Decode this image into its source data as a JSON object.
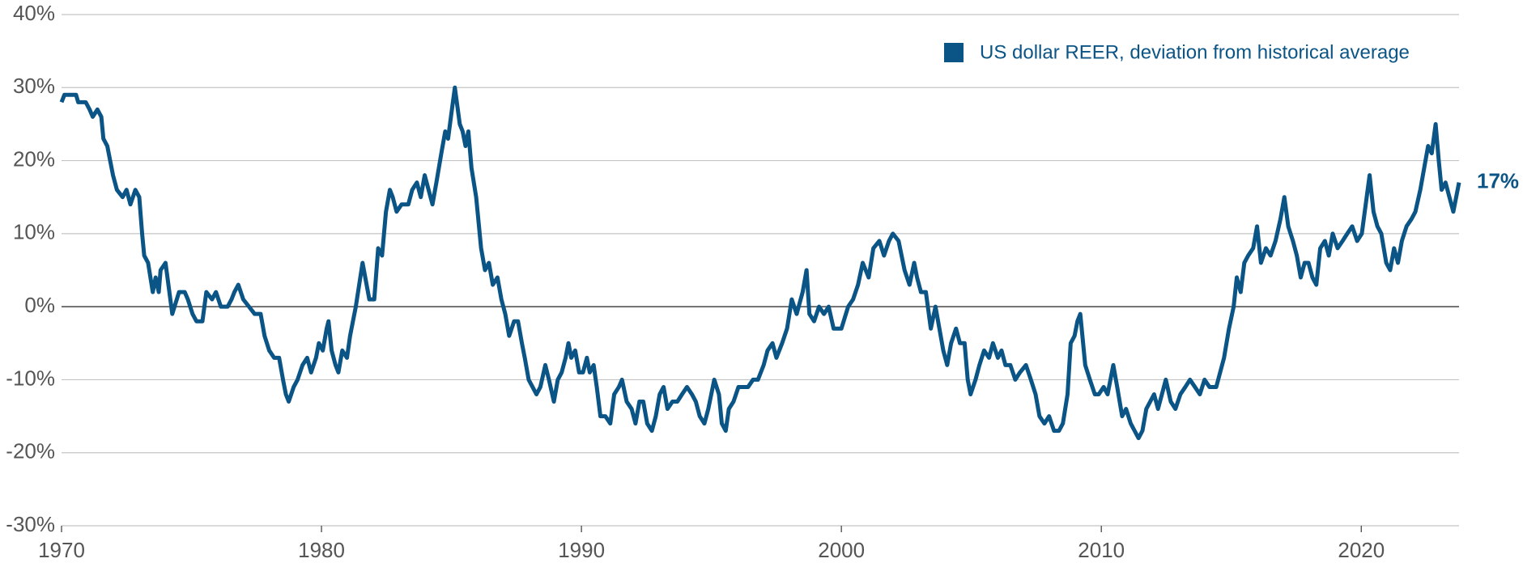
{
  "chart_data": {
    "type": "line",
    "annotation": "17%",
    "legend_position": "top-right",
    "grid": true,
    "xlim": [
      1970,
      2023.76
    ],
    "ylim": [
      -30,
      40
    ],
    "xticks": [
      1970,
      1980,
      1990,
      2000,
      2010,
      2020
    ],
    "yticks": [
      {
        "value": -30,
        "label": "-30%"
      },
      {
        "value": -20,
        "label": "-20%"
      },
      {
        "value": -10,
        "label": "-10%"
      },
      {
        "value": 0,
        "label": "0%"
      },
      {
        "value": 10,
        "label": "10%"
      },
      {
        "value": 20,
        "label": "20%"
      },
      {
        "value": 30,
        "label": "30%"
      },
      {
        "value": 40,
        "label": "40%"
      }
    ],
    "x": [
      1970.0,
      1970.11,
      1970.56,
      1970.64,
      1970.93,
      1971.08,
      1971.2,
      1971.38,
      1971.53,
      1971.61,
      1971.76,
      1971.98,
      1972.13,
      1972.35,
      1972.5,
      1972.65,
      1972.84,
      1972.99,
      1973.1,
      1973.18,
      1973.33,
      1973.51,
      1973.62,
      1973.74,
      1973.81,
      1974.0,
      1974.26,
      1974.52,
      1974.74,
      1974.86,
      1975.04,
      1975.19,
      1975.42,
      1975.57,
      1975.79,
      1975.94,
      1976.13,
      1976.39,
      1976.54,
      1976.65,
      1976.8,
      1976.99,
      1977.21,
      1977.43,
      1977.66,
      1977.81,
      1977.99,
      1978.18,
      1978.37,
      1978.52,
      1978.63,
      1978.74,
      1978.93,
      1979.08,
      1979.27,
      1979.45,
      1979.6,
      1979.79,
      1979.9,
      1980.05,
      1980.2,
      1980.27,
      1980.39,
      1980.54,
      1980.65,
      1980.8,
      1980.98,
      1981.1,
      1981.32,
      1981.58,
      1981.84,
      1982.03,
      1982.18,
      1982.33,
      1982.48,
      1982.63,
      1982.74,
      1982.89,
      1983.08,
      1983.34,
      1983.49,
      1983.67,
      1983.82,
      1983.97,
      1984.12,
      1984.27,
      1984.42,
      1984.61,
      1984.76,
      1984.87,
      1984.98,
      1985.13,
      1985.32,
      1985.43,
      1985.54,
      1985.65,
      1985.77,
      1985.95,
      1986.14,
      1986.29,
      1986.44,
      1986.59,
      1986.77,
      1986.92,
      1987.07,
      1987.22,
      1987.41,
      1987.56,
      1987.71,
      1987.82,
      1987.97,
      1988.12,
      1988.27,
      1988.42,
      1988.61,
      1988.75,
      1988.94,
      1989.09,
      1989.24,
      1989.39,
      1989.5,
      1989.61,
      1989.76,
      1989.91,
      1990.06,
      1990.21,
      1990.32,
      1990.47,
      1990.59,
      1990.73,
      1990.92,
      1991.11,
      1991.26,
      1991.44,
      1991.56,
      1991.74,
      1991.93,
      1992.08,
      1992.23,
      1992.38,
      1992.53,
      1992.71,
      1992.86,
      1993.01,
      1993.16,
      1993.31,
      1993.5,
      1993.69,
      1993.87,
      1994.06,
      1994.25,
      1994.4,
      1994.55,
      1994.73,
      1994.88,
      1995.11,
      1995.29,
      1995.4,
      1995.55,
      1995.67,
      1995.85,
      1996.04,
      1996.41,
      1996.6,
      1996.79,
      1997.01,
      1997.16,
      1997.35,
      1997.5,
      1997.72,
      1997.91,
      1998.09,
      1998.28,
      1998.51,
      1998.66,
      1998.77,
      1998.95,
      1999.14,
      1999.33,
      1999.51,
      1999.7,
      2000.0,
      2000.26,
      2000.45,
      2000.64,
      2000.82,
      2001.05,
      2001.23,
      2001.46,
      2001.64,
      2001.83,
      2001.98,
      2002.2,
      2002.43,
      2002.62,
      2002.8,
      2002.91,
      2003.06,
      2003.25,
      2003.44,
      2003.62,
      2003.77,
      2003.92,
      2004.07,
      2004.22,
      2004.41,
      2004.56,
      2004.74,
      2004.86,
      2004.97,
      2005.16,
      2005.31,
      2005.49,
      2005.68,
      2005.83,
      2006.02,
      2006.16,
      2006.31,
      2006.5,
      2006.69,
      2006.87,
      2007.1,
      2007.29,
      2007.47,
      2007.62,
      2007.81,
      2007.99,
      2008.18,
      2008.37,
      2008.52,
      2008.7,
      2008.82,
      2008.97,
      2009.08,
      2009.19,
      2009.38,
      2009.56,
      2009.75,
      2009.9,
      2010.09,
      2010.24,
      2010.35,
      2010.46,
      2010.61,
      2010.8,
      2010.95,
      2011.13,
      2011.28,
      2011.43,
      2011.58,
      2011.73,
      2011.88,
      2012.03,
      2012.18,
      2012.33,
      2012.48,
      2012.67,
      2012.85,
      2013.04,
      2013.23,
      2013.41,
      2013.6,
      2013.79,
      2013.97,
      2014.16,
      2014.42,
      2014.57,
      2014.72,
      2014.91,
      2015.09,
      2015.21,
      2015.36,
      2015.5,
      2015.65,
      2015.84,
      2015.99,
      2016.14,
      2016.33,
      2016.51,
      2016.7,
      2016.89,
      2017.04,
      2017.19,
      2017.37,
      2017.52,
      2017.67,
      2017.82,
      2017.97,
      2018.12,
      2018.27,
      2018.42,
      2018.6,
      2018.75,
      2018.9,
      2019.09,
      2019.28,
      2019.46,
      2019.65,
      2019.84,
      2020.02,
      2020.17,
      2020.32,
      2020.47,
      2020.62,
      2020.77,
      2020.96,
      2021.11,
      2021.26,
      2021.41,
      2021.56,
      2021.74,
      2021.93,
      2022.08,
      2022.27,
      2022.42,
      2022.57,
      2022.71,
      2022.86,
      2022.98,
      2023.09,
      2023.24,
      2023.39,
      2023.54,
      2023.65,
      2023.76
    ],
    "series": [
      {
        "name": "US dollar REER, deviation from historical average",
        "color": "#0b5486",
        "values": [
          28,
          29,
          29,
          28,
          28,
          27,
          26,
          27,
          26,
          23,
          22,
          18,
          16,
          15,
          16,
          14,
          16,
          15,
          10,
          7,
          6,
          2,
          4,
          2,
          5,
          6,
          -1,
          2,
          2,
          1,
          -1,
          -2,
          -2,
          2,
          1,
          2,
          0,
          0,
          1,
          2,
          3,
          1,
          0,
          -1,
          -1,
          -4,
          -6,
          -7,
          -7,
          -10,
          -12,
          -13,
          -11,
          -10,
          -8,
          -7,
          -9,
          -7,
          -5,
          -6,
          -3,
          -2,
          -6,
          -8,
          -9,
          -6,
          -7,
          -4,
          0,
          6,
          1,
          1,
          8,
          7,
          13,
          16,
          15,
          13,
          14,
          14,
          16,
          17,
          15,
          18,
          16,
          14,
          17,
          21,
          24,
          23,
          26,
          30,
          25,
          24,
          22,
          24,
          19,
          15,
          8,
          5,
          6,
          3,
          4,
          1,
          -1,
          -4,
          -2,
          -2,
          -5,
          -7,
          -10,
          -11,
          -12,
          -11,
          -8,
          -10,
          -13,
          -10,
          -9,
          -7,
          -5,
          -7,
          -6,
          -9,
          -9,
          -7,
          -9,
          -8,
          -11,
          -15,
          -15,
          -16,
          -12,
          -11,
          -10,
          -13,
          -14,
          -16,
          -13,
          -13,
          -16,
          -17,
          -15,
          -12,
          -11,
          -14,
          -13,
          -13,
          -12,
          -11,
          -12,
          -13,
          -15,
          -16,
          -14,
          -10,
          -12,
          -16,
          -17,
          -14,
          -13,
          -11,
          -11,
          -10,
          -10,
          -8,
          -6,
          -5,
          -7,
          -5,
          -3,
          1,
          -1,
          2,
          5,
          -1,
          -2,
          0,
          -1,
          0,
          -3,
          -3,
          0,
          1,
          3,
          6,
          4,
          8,
          9,
          7,
          9,
          10,
          9,
          5,
          3,
          6,
          4,
          2,
          2,
          -3,
          0,
          -3,
          -6,
          -8,
          -5,
          -3,
          -5,
          -5,
          -10,
          -12,
          -10,
          -8,
          -6,
          -7,
          -5,
          -7,
          -6,
          -8,
          -8,
          -10,
          -9,
          -8,
          -10,
          -12,
          -15,
          -16,
          -15,
          -17,
          -17,
          -16,
          -12,
          -5,
          -4,
          -2,
          -1,
          -8,
          -10,
          -12,
          -12,
          -11,
          -12,
          -10,
          -8,
          -11,
          -15,
          -14,
          -16,
          -17,
          -18,
          -17,
          -14,
          -13,
          -12,
          -14,
          -12,
          -10,
          -13,
          -14,
          -12,
          -11,
          -10,
          -11,
          -12,
          -10,
          -11,
          -11,
          -9,
          -7,
          -3,
          0,
          4,
          2,
          6,
          7,
          8,
          11,
          6,
          8,
          7,
          9,
          12,
          15,
          11,
          9,
          7,
          4,
          6,
          6,
          4,
          3,
          8,
          9,
          7,
          10,
          8,
          9,
          10,
          11,
          9,
          10,
          14,
          18,
          13,
          11,
          10,
          6,
          5,
          8,
          6,
          9,
          11,
          12,
          13,
          16,
          19,
          22,
          21,
          25,
          20,
          16,
          17,
          15,
          13,
          15,
          17
        ]
      }
    ]
  }
}
